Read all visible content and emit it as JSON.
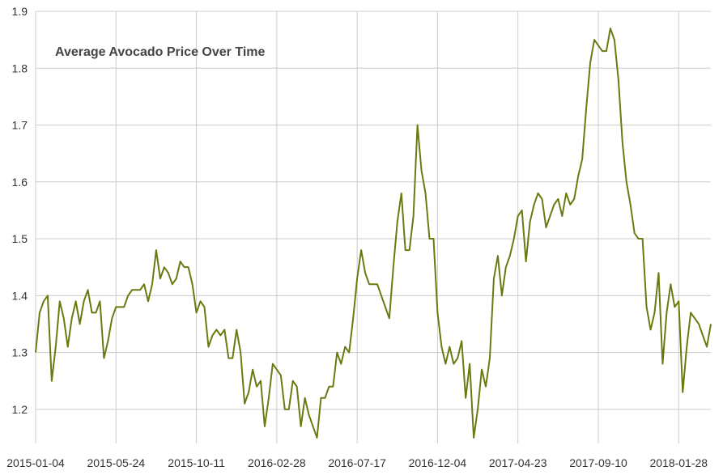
{
  "chart_data": {
    "type": "line",
    "title": "Average Avocado Price Over Time",
    "xlabel": "",
    "ylabel": "",
    "grid": true,
    "x_ticks": [
      "2015-01-04",
      "2015-05-24",
      "2015-10-11",
      "2016-02-28",
      "2016-07-17",
      "2016-12-04",
      "2017-04-23",
      "2017-09-10",
      "2018-01-28"
    ],
    "y_ticks": [
      "1.2",
      "1.3",
      "1.4",
      "1.5",
      "1.6",
      "1.7",
      "1.8",
      "1.9"
    ],
    "xlim": [
      "2015-01-04",
      "2018-03-25"
    ],
    "ylim": [
      1.14,
      1.9
    ],
    "line_color": "#6b7a10",
    "series": [
      {
        "x_start": "2015-01-04",
        "x_step_days": 7,
        "values": [
          1.3,
          1.37,
          1.39,
          1.4,
          1.25,
          1.31,
          1.39,
          1.36,
          1.31,
          1.36,
          1.39,
          1.35,
          1.39,
          1.41,
          1.37,
          1.37,
          1.39,
          1.29,
          1.32,
          1.36,
          1.38,
          1.38,
          1.38,
          1.4,
          1.41,
          1.41,
          1.41,
          1.42,
          1.39,
          1.42,
          1.48,
          1.43,
          1.45,
          1.44,
          1.42,
          1.43,
          1.46,
          1.45,
          1.45,
          1.42,
          1.37,
          1.39,
          1.38,
          1.31,
          1.33,
          1.34,
          1.33,
          1.34,
          1.29,
          1.29,
          1.34,
          1.3,
          1.21,
          1.23,
          1.27,
          1.24,
          1.25,
          1.17,
          1.22,
          1.28,
          1.27,
          1.26,
          1.2,
          1.2,
          1.25,
          1.24,
          1.17,
          1.22,
          1.19,
          1.17,
          1.15,
          1.22,
          1.22,
          1.24,
          1.24,
          1.3,
          1.28,
          1.31,
          1.3,
          1.36,
          1.43,
          1.48,
          1.44,
          1.42,
          1.42,
          1.42,
          1.4,
          1.38,
          1.36,
          1.45,
          1.53,
          1.58,
          1.48,
          1.48,
          1.54,
          1.7,
          1.62,
          1.58,
          1.5,
          1.5,
          1.37,
          1.31,
          1.28,
          1.31,
          1.28,
          1.29,
          1.32,
          1.22,
          1.28,
          1.15,
          1.2,
          1.27,
          1.24,
          1.29,
          1.43,
          1.47,
          1.4,
          1.45,
          1.47,
          1.5,
          1.54,
          1.55,
          1.46,
          1.53,
          1.56,
          1.58,
          1.57,
          1.52,
          1.54,
          1.56,
          1.57,
          1.54,
          1.58,
          1.56,
          1.57,
          1.61,
          1.64,
          1.73,
          1.81,
          1.85,
          1.84,
          1.83,
          1.83,
          1.87,
          1.85,
          1.78,
          1.67,
          1.6,
          1.56,
          1.51,
          1.5,
          1.5,
          1.38,
          1.34,
          1.37,
          1.44,
          1.28,
          1.37,
          1.42,
          1.38,
          1.39,
          1.23,
          1.31,
          1.37,
          1.36,
          1.35,
          1.33,
          1.31,
          1.35
        ]
      }
    ]
  }
}
